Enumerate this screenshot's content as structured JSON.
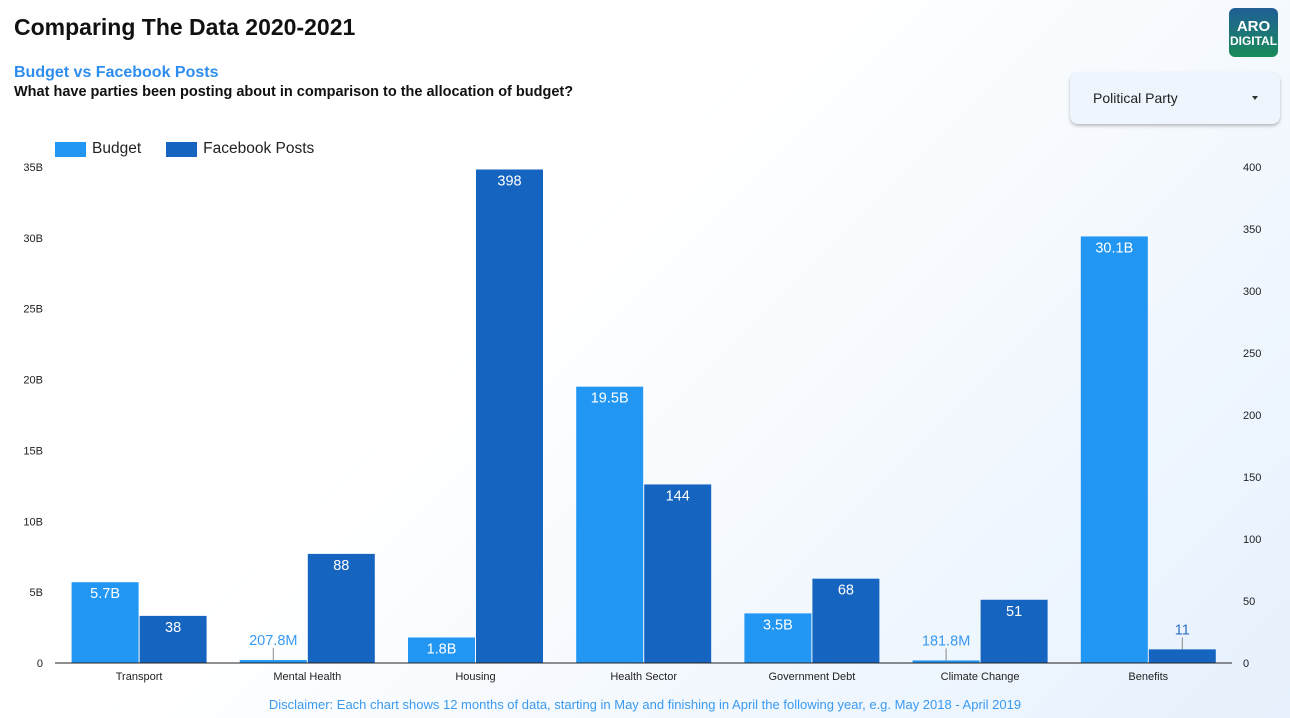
{
  "header": {
    "title": "Comparing The Data 2020-2021",
    "subtitle": "Budget vs Facebook Posts",
    "question": "What have parties been posting about in comparison to the allocation of budget?"
  },
  "logo": {
    "line1": "ARO",
    "line2": "DIGITAL"
  },
  "filter": {
    "label": "Political Party",
    "icon": "caret-down-icon"
  },
  "disclaimer": "Disclaimer: Each chart shows 12 months of data, starting in May and finishing in April the following year, e.g. May 2018 - April 2019",
  "colors": {
    "budget": "#2196f3",
    "posts": "#1565c0"
  },
  "chart_data": {
    "type": "bar",
    "title": "Budget vs Facebook Posts",
    "categories": [
      "Transport",
      "Mental Health",
      "Housing",
      "Health Sector",
      "Government Debt",
      "Climate Change",
      "Benefits"
    ],
    "series": [
      {
        "name": "Budget",
        "axis": "left",
        "values": [
          5700000000,
          207800000,
          1800000000,
          19500000000,
          3500000000,
          181800000,
          30100000000
        ],
        "labels": [
          "5.7B",
          "207.8M",
          "1.8B",
          "19.5B",
          "3.5B",
          "181.8M",
          "30.1B"
        ]
      },
      {
        "name": "Facebook Posts",
        "axis": "right",
        "values": [
          38,
          88,
          398,
          144,
          68,
          51,
          11
        ],
        "labels": [
          "38",
          "88",
          "398",
          "144",
          "68",
          "51",
          "11"
        ]
      }
    ],
    "left_axis": {
      "ylim": [
        0,
        35000000000
      ],
      "ticks": [
        "0",
        "5B",
        "10B",
        "15B",
        "20B",
        "25B",
        "30B",
        "35B"
      ]
    },
    "right_axis": {
      "ylim": [
        0,
        400
      ],
      "ticks": [
        "0",
        "50",
        "100",
        "150",
        "200",
        "250",
        "300",
        "350",
        "400"
      ]
    },
    "legend": {
      "position": "top-left",
      "entries": [
        "Budget",
        "Facebook Posts"
      ]
    },
    "grid": false
  }
}
